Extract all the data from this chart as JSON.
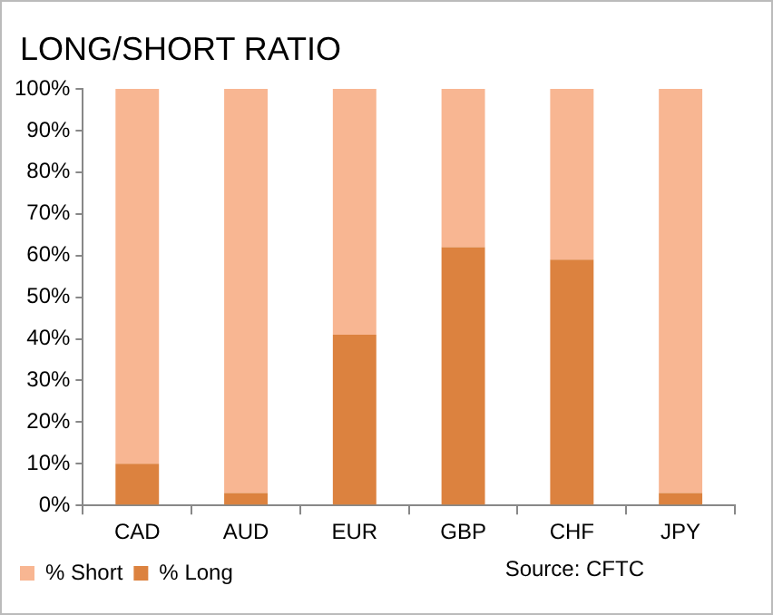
{
  "chart_data": {
    "type": "bar",
    "title": "LONG/SHORT RATIO",
    "categories": [
      "CAD",
      "AUD",
      "EUR",
      "GBP",
      "CHF",
      "JPY"
    ],
    "series": [
      {
        "name": "% Long",
        "color": "#dc823f",
        "values": [
          10,
          3,
          41,
          62,
          59,
          3
        ]
      },
      {
        "name": "% Short",
        "color": "#f8b692",
        "values": [
          90,
          97,
          59,
          38,
          41,
          97
        ]
      }
    ],
    "stacked": true,
    "ylim": [
      0,
      100
    ],
    "yticks": [
      {
        "value": 0,
        "label": "0%"
      },
      {
        "value": 10,
        "label": "10%"
      },
      {
        "value": 20,
        "label": "20%"
      },
      {
        "value": 30,
        "label": "30%"
      },
      {
        "value": 40,
        "label": "40%"
      },
      {
        "value": 50,
        "label": "50%"
      },
      {
        "value": 60,
        "label": "60%"
      },
      {
        "value": 70,
        "label": "70%"
      },
      {
        "value": 80,
        "label": "80%"
      },
      {
        "value": 90,
        "label": "90%"
      },
      {
        "value": 100,
        "label": "100%"
      }
    ],
    "grid": false,
    "legend": "bottom left",
    "annotations": [
      "Source: CFTC"
    ]
  }
}
